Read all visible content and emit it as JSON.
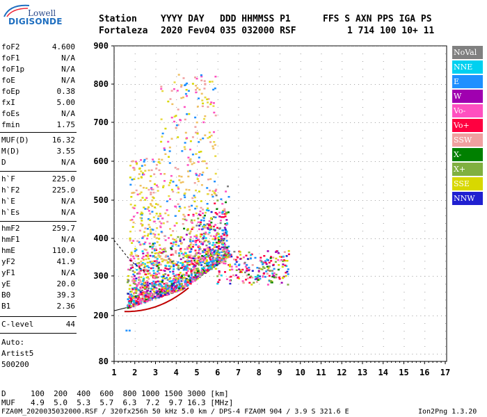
{
  "logo": {
    "top": "Lowell",
    "bottom": "DIGISONDE"
  },
  "header": {
    "labels": [
      "Station",
      "YYYY DAY",
      "DDD HHMMSS P1",
      "FFS S AXN PPS IGA PS"
    ],
    "values": [
      "Fortaleza",
      "2020 Fev04",
      "035 032000 RSF",
      "1 714 100 10+ 11"
    ]
  },
  "params": [
    {
      "label": "foF2",
      "value": "4.600"
    },
    {
      "label": "foF1",
      "value": "N/A"
    },
    {
      "label": "foF1p",
      "value": "N/A"
    },
    {
      "label": "foE",
      "value": "N/A"
    },
    {
      "label": "foEp",
      "value": "0.38"
    },
    {
      "label": "fxI",
      "value": "5.00"
    },
    {
      "label": "foEs",
      "value": "N/A"
    },
    {
      "label": "fmin",
      "value": "1.75"
    },
    {
      "label": "MUF(D)",
      "value": "16.32"
    },
    {
      "label": "M(D)",
      "value": "3.55"
    },
    {
      "label": "D",
      "value": "N/A"
    },
    {
      "label": "h`F",
      "value": "225.0"
    },
    {
      "label": "h`F2",
      "value": "225.0"
    },
    {
      "label": "h`E",
      "value": "N/A"
    },
    {
      "label": "h`Es",
      "value": "N/A"
    },
    {
      "label": "hmF2",
      "value": "259.7"
    },
    {
      "label": "hmF1",
      "value": "N/A"
    },
    {
      "label": "hmE",
      "value": "110.0"
    },
    {
      "label": "yF2",
      "value": "41.9"
    },
    {
      "label": "yF1",
      "value": "N/A"
    },
    {
      "label": "yE",
      "value": "20.0"
    },
    {
      "label": "B0",
      "value": "39.3"
    },
    {
      "label": "B1",
      "value": "2.36"
    },
    {
      "label": "C-level",
      "value": "44"
    }
  ],
  "auto": {
    "line1": "Auto:",
    "line2": "Artist5",
    "line3": "500200"
  },
  "legend": [
    {
      "label": "NoVal",
      "color": "#808080"
    },
    {
      "label": "NNE",
      "color": "#00d0f0"
    },
    {
      "label": "E",
      "color": "#1e90ff"
    },
    {
      "label": "W",
      "color": "#a000b0"
    },
    {
      "label": "Vo-",
      "color": "#ff50c0"
    },
    {
      "label": "Vo+",
      "color": "#ff0040"
    },
    {
      "label": "SSW",
      "color": "#f0a0a0"
    },
    {
      "label": "X-",
      "color": "#008000"
    },
    {
      "label": "X+",
      "color": "#80b040"
    },
    {
      "label": "SSE",
      "color": "#d8d800"
    },
    {
      "label": "NNW",
      "color": "#2020d0"
    }
  ],
  "chart_data": {
    "type": "scatter",
    "x_ticks": [
      "1",
      "2",
      "3",
      "4",
      "5",
      "6",
      "7",
      "8",
      "9",
      "10",
      "11",
      "12",
      "13",
      "14",
      "15",
      "16",
      "17"
    ],
    "y_ticks": [
      "80",
      "200",
      "300",
      "400",
      "500",
      "600",
      "700",
      "800",
      "900"
    ],
    "xlim": [
      1,
      17
    ],
    "ylim": [
      80,
      900
    ]
  },
  "footer": {
    "d_label": "D",
    "d_values": "100  200  400  600  800 1000 1500 3000 [km]",
    "muf_label": "MUF",
    "muf_values": "4.9  5.0  5.3  5.7  6.3  7.2  9.7 16.3 [MHz]",
    "file_line": "FZA0M_2020035032000.RSF / 320fx256h 50 kHz 5.0 km / DPS-4 FZA0M 904 / 3.9 S 321.6 E",
    "version": "Ion2Png 1.3.20"
  }
}
